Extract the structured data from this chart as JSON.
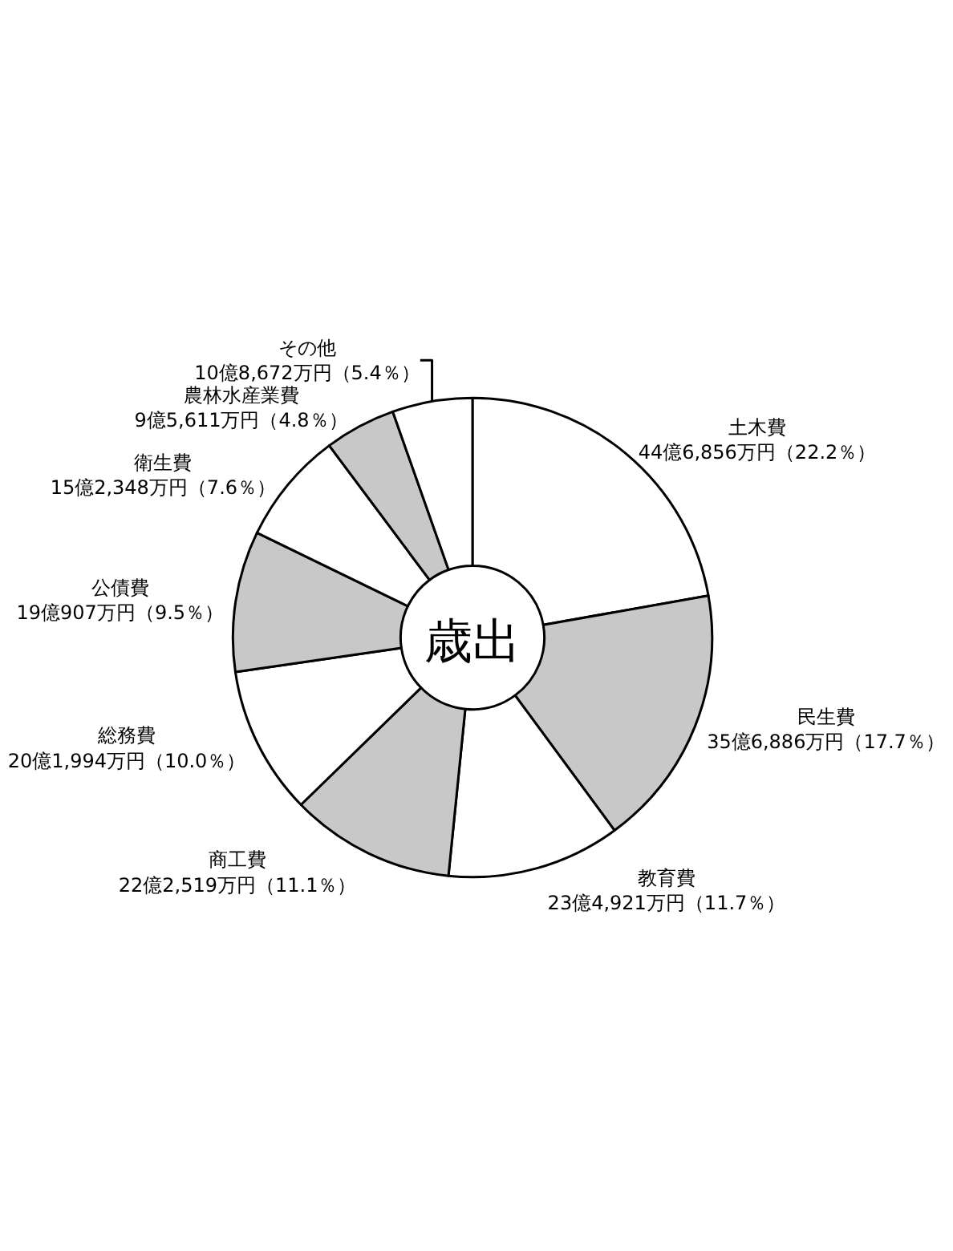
{
  "chart_data": {
    "type": "donut",
    "title": "歳出",
    "categories": [
      "土木費",
      "民生費",
      "教育費",
      "商工費",
      "総務費",
      "公債費",
      "衛生費",
      "農林水産業費",
      "その他"
    ],
    "values": [
      22.2,
      17.7,
      11.7,
      11.1,
      10.0,
      9.5,
      7.6,
      4.8,
      5.4
    ],
    "value_labels": [
      "44億6,856万円（22.2％）",
      "35億6,886万円（17.7％）",
      "23億4,921万円（11.7％）",
      "22億2,519万円（11.1％）",
      "20億1,994万円（10.0％）",
      "19億907万円（9.5％）",
      "15億2,348万円（7.6％）",
      "9億5,611万円（4.8％）",
      "10億8,672万円（5.4％）"
    ],
    "colors": [
      "#ffffff",
      "#c8c8c8",
      "#ffffff",
      "#c8c8c8",
      "#ffffff",
      "#c8c8c8",
      "#ffffff",
      "#c8c8c8",
      "#ffffff"
    ]
  }
}
